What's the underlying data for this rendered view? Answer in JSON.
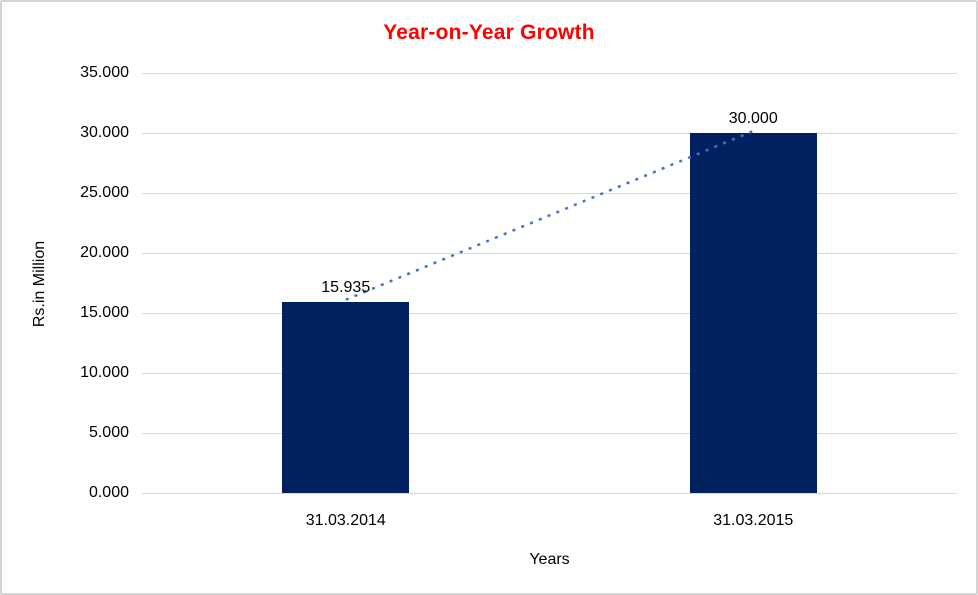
{
  "chart_data": {
    "type": "bar",
    "title": "Year-on-Year Growth",
    "xlabel": "Years",
    "ylabel": "Rs.in Million",
    "categories": [
      "31.03.2014",
      "31.03.2015"
    ],
    "values": [
      15.935,
      30.0
    ],
    "value_labels": [
      "15.935",
      "30.000"
    ],
    "ylim": [
      0,
      35
    ],
    "ytick_values": [
      0,
      5,
      10,
      15,
      20,
      25,
      30,
      35
    ],
    "ytick_labels": [
      "0.000",
      "5.000",
      "10.000",
      "15.000",
      "20.000",
      "25.000",
      "30.000",
      "35.000"
    ],
    "grid": true,
    "legend": "none",
    "trendline": {
      "style": "dotted",
      "connects": "bar tops (category centers)",
      "color": "#4472C4"
    },
    "colors": {
      "bar": "#002060",
      "title": "#FF0000",
      "gridline": "#D9D9D9",
      "trendline": "#4472C4",
      "text": "#000000",
      "frame_border": "#D4D4D4"
    }
  }
}
